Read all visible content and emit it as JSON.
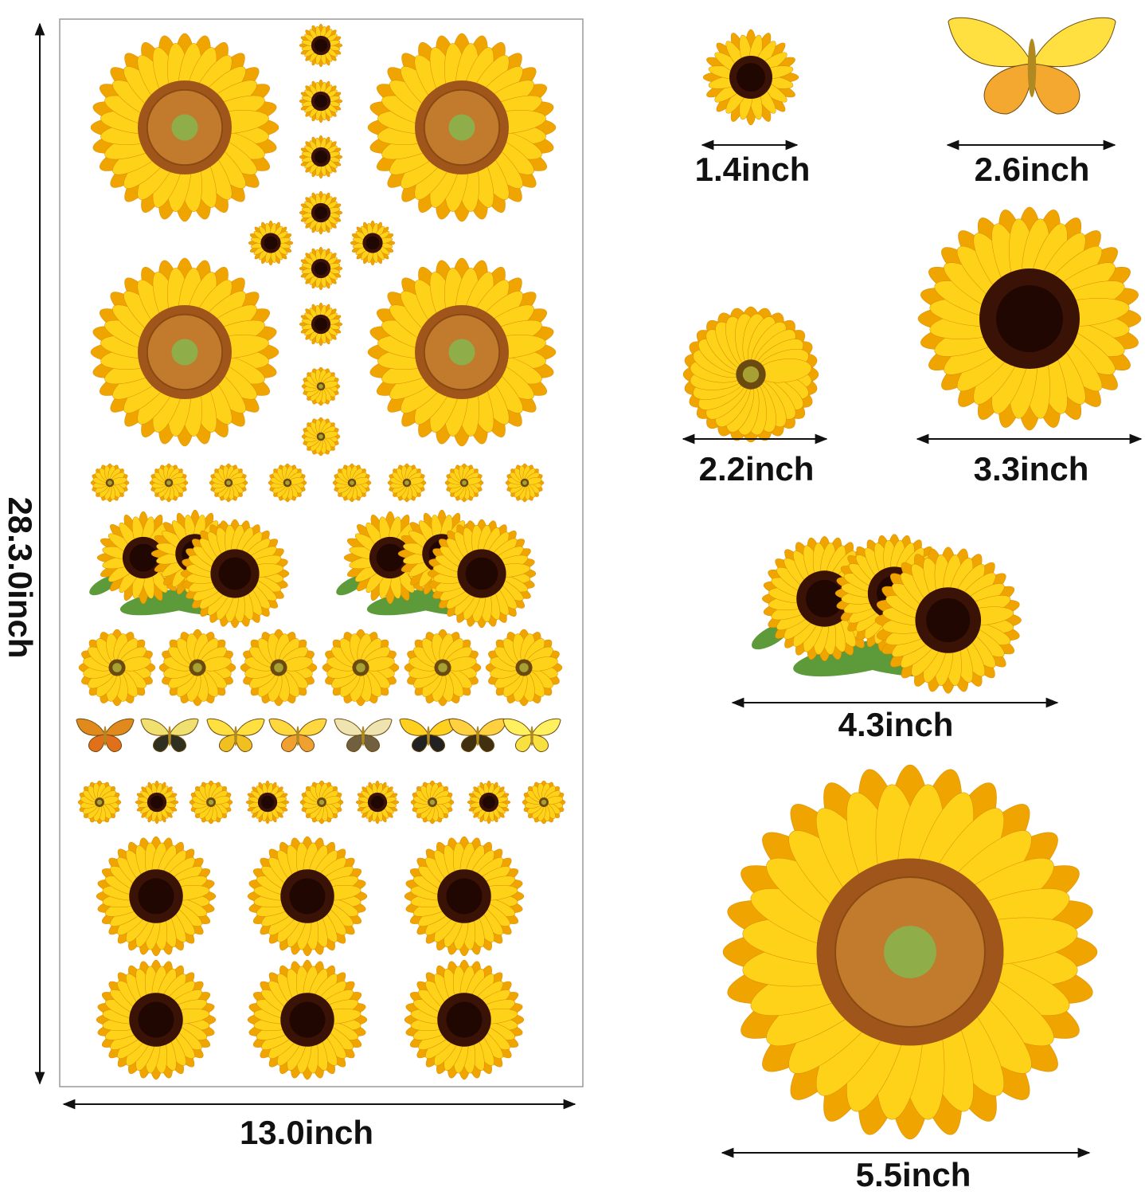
{
  "sheet": {
    "height_label": "28.3.0inch",
    "width_label": "13.0inch"
  },
  "samples": [
    {
      "label": "1.4inch"
    },
    {
      "label": "2.6inch"
    },
    {
      "label": "2.2inch"
    },
    {
      "label": "3.3inch"
    },
    {
      "label": "4.3inch"
    },
    {
      "label": "5.5inch"
    }
  ]
}
